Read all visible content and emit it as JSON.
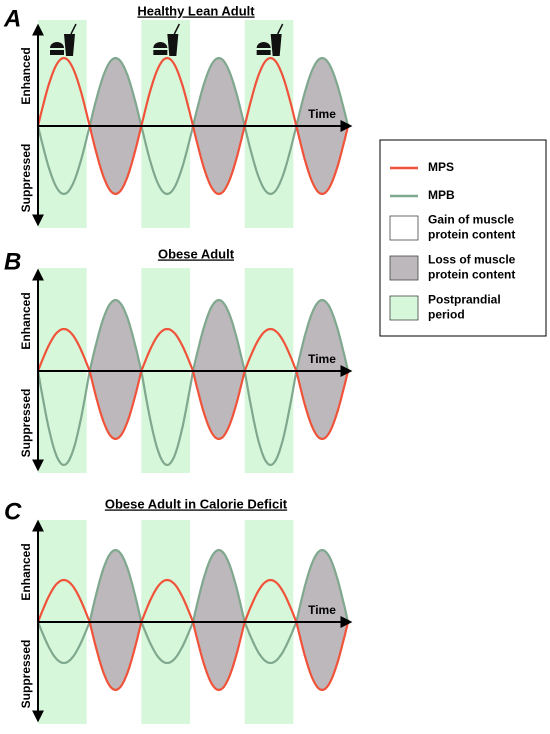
{
  "panels": [
    {
      "letter": "A",
      "title": "Healthy Lean Adult",
      "y_top": "Enhanced",
      "y_bottom": "Suppressed",
      "x_label": "Time"
    },
    {
      "letter": "B",
      "title": "Obese Adult",
      "y_top": "Enhanced",
      "y_bottom": "Suppressed",
      "x_label": "Time"
    },
    {
      "letter": "C",
      "title": "Obese Adult in Calorie Deficit",
      "y_top": "Enhanced",
      "y_bottom": "Suppressed",
      "x_label": "Time"
    }
  ],
  "legend": {
    "items": [
      {
        "lines": [
          "MPS"
        ]
      },
      {
        "lines": [
          "MPB"
        ]
      },
      {
        "lines": [
          "Gain of muscle",
          "protein content"
        ]
      },
      {
        "lines": [
          "Loss of muscle",
          "protein content"
        ]
      },
      {
        "lines": [
          "Postprandial",
          "period"
        ]
      }
    ]
  }
}
